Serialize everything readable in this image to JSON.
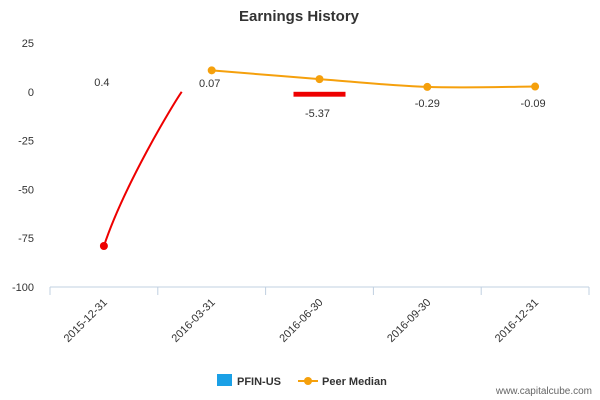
{
  "chart_data": {
    "type": "bar",
    "title": "Earnings History",
    "categories": [
      "2015-12-31",
      "2016-03-31",
      "2016-06-30",
      "2016-09-30",
      "2016-12-31"
    ],
    "ylim": [
      -100,
      25
    ],
    "yticks": [
      25,
      0,
      -25,
      -50,
      -75,
      -100
    ],
    "grid": false,
    "legend_position": "bottom-center",
    "series": [
      {
        "name": "PFIN-US",
        "kind": "bar",
        "color": "#1aa0e6",
        "values": [
          null,
          null,
          -2.5,
          null,
          null
        ],
        "highlight_color": "#ee0000"
      },
      {
        "name": "Peer Median",
        "kind": "line",
        "color": "#f5a00c",
        "values": [
          -79,
          11,
          6.5,
          2.5,
          2.7
        ]
      }
    ],
    "lead_in": {
      "color": "#ee0000",
      "from_index": 0
    },
    "data_labels": [
      "0.4",
      "0.07",
      "-5.37",
      "-0.29",
      "-0.09"
    ],
    "credit": "www.capitalcube.com"
  }
}
